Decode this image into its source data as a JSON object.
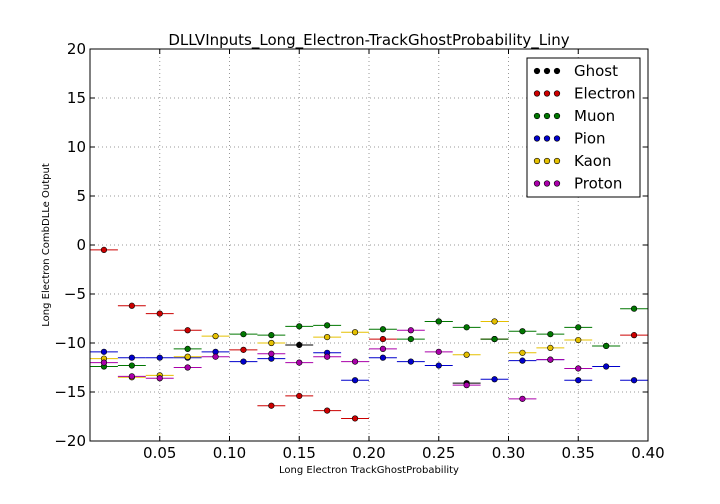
{
  "chart_data": {
    "type": "scatter",
    "title": "DLLVInputs_Long_Electron-TrackGhostProbability_Liny",
    "xlabel": "Long Electron TrackGhostProbability",
    "ylabel": "Long Electron CombDLLe Output",
    "xlim": [
      0.0,
      0.4
    ],
    "ylim": [
      -20,
      20
    ],
    "xticks": [
      0.05,
      0.1,
      0.15,
      0.2,
      0.25,
      0.3,
      0.35,
      0.4
    ],
    "xtick_labels": [
      "0.05",
      "0.10",
      "0.15",
      "0.20",
      "0.25",
      "0.30",
      "0.35",
      "0.40"
    ],
    "yticks": [
      -20,
      -15,
      -10,
      -5,
      0,
      5,
      10,
      15,
      20
    ],
    "ytick_labels": [
      "−20",
      "−15",
      "−10",
      "−5",
      "0",
      "5",
      "10",
      "15",
      "20"
    ],
    "grid": true,
    "legend_position": "top-right",
    "bin_half_width": 0.01,
    "x": [
      0.01,
      0.03,
      0.05,
      0.07,
      0.09,
      0.11,
      0.13,
      0.15,
      0.17,
      0.19,
      0.21,
      0.23,
      0.25,
      0.27,
      0.29,
      0.31,
      0.33,
      0.35,
      0.37,
      0.39
    ],
    "series": [
      {
        "name": "Ghost",
        "color": "#000000",
        "values": [
          null,
          null,
          null,
          null,
          null,
          null,
          null,
          -10.2,
          null,
          null,
          null,
          null,
          -7.8,
          -14.1,
          -9.6,
          null,
          null,
          null,
          -10.3,
          null
        ]
      },
      {
        "name": "Electron",
        "color": "#cc0000",
        "values": [
          -0.5,
          -6.2,
          -7.0,
          -8.7,
          null,
          -10.7,
          -16.4,
          -15.4,
          -16.9,
          -17.7,
          -9.6,
          null,
          null,
          null,
          -9.6,
          null,
          null,
          null,
          null,
          -9.2
        ]
      },
      {
        "name": "Muon",
        "color": "#007700",
        "values": [
          -12.4,
          -12.3,
          null,
          -10.6,
          null,
          -9.1,
          -9.2,
          -8.3,
          -8.2,
          null,
          -8.6,
          -9.6,
          -7.8,
          -8.4,
          -9.6,
          -8.8,
          -9.1,
          -8.4,
          -10.3,
          -6.5
        ]
      },
      {
        "name": "Pion",
        "color": "#0000cc",
        "values": [
          -10.9,
          -11.5,
          -11.5,
          -11.5,
          -10.9,
          -11.9,
          -11.6,
          null,
          -11.0,
          -13.8,
          -11.5,
          -11.9,
          -12.3,
          null,
          -13.7,
          -11.8,
          -11.7,
          -13.8,
          -12.4,
          -13.8
        ]
      },
      {
        "name": "Kaon",
        "color": "#e5c000",
        "values": [
          -11.6,
          -13.5,
          -13.3,
          -11.4,
          -9.3,
          null,
          -10.0,
          null,
          -9.4,
          -8.9,
          null,
          null,
          null,
          -11.2,
          -7.8,
          -11.0,
          -10.5,
          -9.7,
          null,
          null
        ]
      },
      {
        "name": "Proton",
        "color": "#aa00aa",
        "values": [
          -12.0,
          -13.4,
          -13.6,
          -12.5,
          -11.4,
          null,
          -11.1,
          -12.0,
          -11.4,
          -11.9,
          -10.6,
          -8.7,
          -10.9,
          -14.3,
          null,
          -15.7,
          -11.7,
          -12.6,
          null,
          null
        ]
      }
    ]
  }
}
